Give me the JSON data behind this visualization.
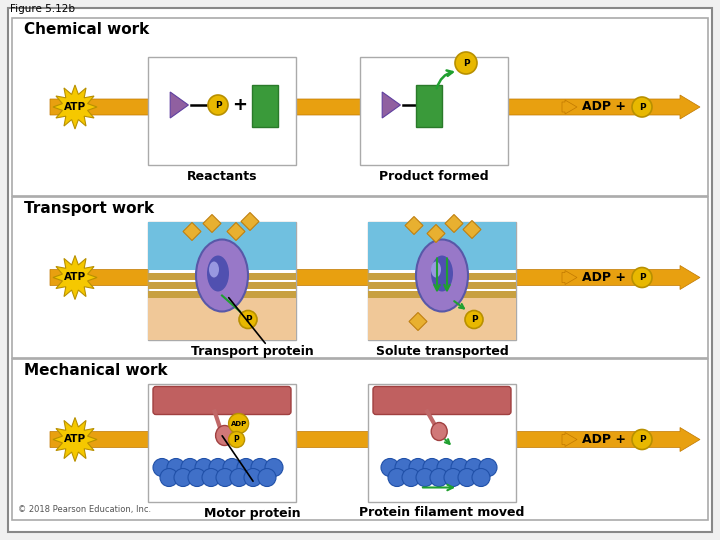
{
  "figure_label": "Figure 5.12b",
  "copyright": "© 2018 Pearson Education, Inc.",
  "panel_titles": [
    "Chemical work",
    "Transport work",
    "Mechanical work"
  ],
  "left_captions": [
    "Reactants",
    "Transport protein",
    "Motor protein"
  ],
  "right_captions": [
    "Product formed",
    "Solute transported",
    "Protein filament moved"
  ],
  "colors": {
    "bg": "#f0f0f0",
    "white": "#ffffff",
    "border": "#aaaaaa",
    "orange": "#E8A010",
    "dark_orange": "#C07800",
    "yellow_burst": "#F5C800",
    "yellow_p": "#E8B800",
    "green": "#3a9a3a",
    "purple": "#9060a0",
    "dark_purple": "#6040a0",
    "blue_water": "#70c0e0",
    "peach": "#f0c898",
    "membrane": "#c8a040",
    "prot_purple": "#8878c0",
    "prot_dark": "#4848a8",
    "red_cyl": "#c06060",
    "dark_red_cyl": "#a04040",
    "blue_actin": "#4070c8",
    "dark_blue_actin": "#2050a8",
    "arrow_green": "#20a030"
  }
}
